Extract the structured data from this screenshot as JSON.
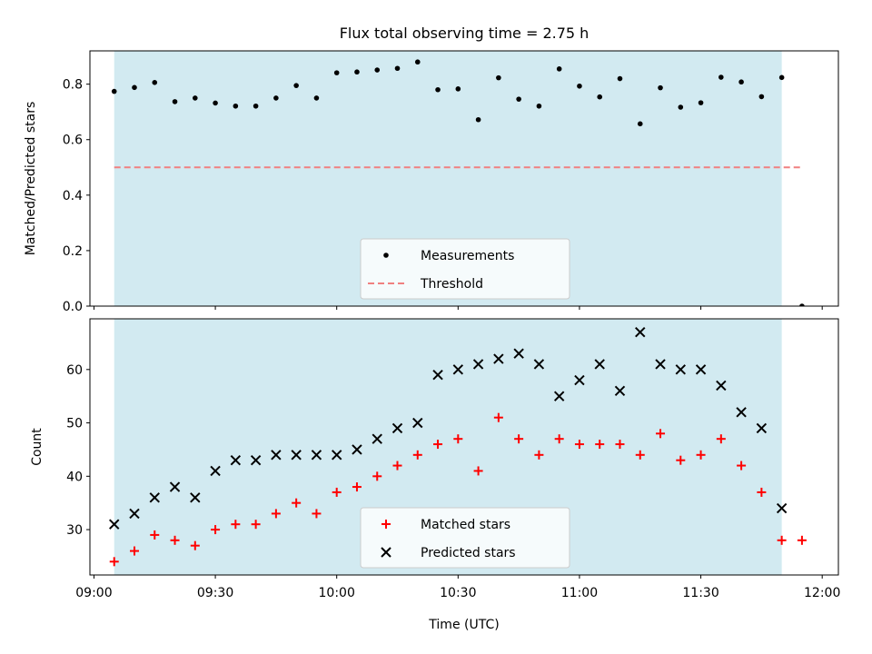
{
  "chart_data": [
    {
      "type": "scatter",
      "title": "Flux total observing time = 2.75 h",
      "xlabel": "",
      "ylabel": "Matched/Predicted stars",
      "x_unit": "time (UTC)",
      "xlim": [
        "08:59",
        "12:04"
      ],
      "ylim": [
        0,
        0.92
      ],
      "yticks": [
        0.0,
        0.2,
        0.4,
        0.6,
        0.8
      ],
      "ytick_labels": [
        "0.0",
        "0.2",
        "0.4",
        "0.6",
        "0.8"
      ],
      "xticks": [
        "09:00",
        "09:30",
        "10:00",
        "10:30",
        "11:00",
        "11:30",
        "12:00"
      ],
      "observing_window": [
        "09:05",
        "11:50"
      ],
      "legend_position": "lower center",
      "series": [
        {
          "name": "Measurements",
          "marker": "dot",
          "color": "#000000",
          "x": [
            "09:05",
            "09:10",
            "09:15",
            "09:20",
            "09:25",
            "09:30",
            "09:35",
            "09:40",
            "09:45",
            "09:50",
            "09:55",
            "10:00",
            "10:05",
            "10:10",
            "10:15",
            "10:20",
            "10:25",
            "10:30",
            "10:35",
            "10:40",
            "10:45",
            "10:50",
            "10:55",
            "11:00",
            "11:05",
            "11:10",
            "11:15",
            "11:20",
            "11:25",
            "11:30",
            "11:35",
            "11:40",
            "11:45",
            "11:50",
            "11:55"
          ],
          "y": [
            0.774,
            0.788,
            0.806,
            0.737,
            0.75,
            0.732,
            0.721,
            0.721,
            0.75,
            0.795,
            0.75,
            0.841,
            0.844,
            0.851,
            0.857,
            0.88,
            0.78,
            0.783,
            0.672,
            0.823,
            0.746,
            0.721,
            0.855,
            0.793,
            0.754,
            0.82,
            0.657,
            0.787,
            0.717,
            0.733,
            0.825,
            0.808,
            0.755,
            0.824,
            0.0
          ]
        },
        {
          "name": "Threshold",
          "style": "dashed",
          "color": "#f08080",
          "x": [
            "09:05",
            "11:55"
          ],
          "y": [
            0.5,
            0.5
          ]
        }
      ]
    },
    {
      "type": "scatter",
      "title": "",
      "xlabel": "Time (UTC)",
      "ylabel": "Count",
      "xlim": [
        "08:59",
        "12:04"
      ],
      "ylim": [
        21.5,
        69.5
      ],
      "yticks": [
        30,
        40,
        50,
        60
      ],
      "ytick_labels": [
        "30",
        "40",
        "50",
        "60"
      ],
      "xticks": [
        "09:00",
        "09:30",
        "10:00",
        "10:30",
        "11:00",
        "11:30",
        "12:00"
      ],
      "xtick_labels": [
        "09:00",
        "09:30",
        "10:00",
        "10:30",
        "11:00",
        "11:30",
        "12:00"
      ],
      "observing_window": [
        "09:05",
        "11:50"
      ],
      "legend_position": "lower center",
      "series": [
        {
          "name": "Matched stars",
          "marker": "plus",
          "color": "#ff0000",
          "x": [
            "09:05",
            "09:10",
            "09:15",
            "09:20",
            "09:25",
            "09:30",
            "09:35",
            "09:40",
            "09:45",
            "09:50",
            "09:55",
            "10:00",
            "10:05",
            "10:10",
            "10:15",
            "10:20",
            "10:25",
            "10:30",
            "10:35",
            "10:40",
            "10:45",
            "10:50",
            "10:55",
            "11:00",
            "11:05",
            "11:10",
            "11:15",
            "11:20",
            "11:25",
            "11:30",
            "11:35",
            "11:40",
            "11:45",
            "11:50",
            "11:55"
          ],
          "y": [
            24,
            26,
            29,
            28,
            27,
            30,
            31,
            31,
            33,
            35,
            33,
            37,
            38,
            40,
            42,
            44,
            46,
            47,
            41,
            51,
            47,
            44,
            47,
            46,
            46,
            46,
            44,
            48,
            43,
            44,
            47,
            42,
            37,
            28,
            28
          ]
        },
        {
          "name": "Predicted stars",
          "marker": "x",
          "color": "#000000",
          "x": [
            "09:05",
            "09:10",
            "09:15",
            "09:20",
            "09:25",
            "09:30",
            "09:35",
            "09:40",
            "09:45",
            "09:50",
            "09:55",
            "10:00",
            "10:05",
            "10:10",
            "10:15",
            "10:20",
            "10:25",
            "10:30",
            "10:35",
            "10:40",
            "10:45",
            "10:50",
            "10:55",
            "11:00",
            "11:05",
            "11:10",
            "11:15",
            "11:20",
            "11:25",
            "11:30",
            "11:35",
            "11:40",
            "11:45",
            "11:50"
          ],
          "y": [
            31,
            33,
            36,
            38,
            36,
            41,
            43,
            43,
            44,
            44,
            44,
            44,
            45,
            47,
            49,
            50,
            59,
            60,
            61,
            62,
            63,
            61,
            55,
            58,
            61,
            56,
            67,
            61,
            60,
            60,
            57,
            52,
            49,
            34
          ]
        }
      ]
    }
  ],
  "colors": {
    "window_fill": "#add8e6",
    "measurements": "#000000",
    "threshold": "#f08080",
    "matched": "#ff0000",
    "predicted": "#000000"
  }
}
